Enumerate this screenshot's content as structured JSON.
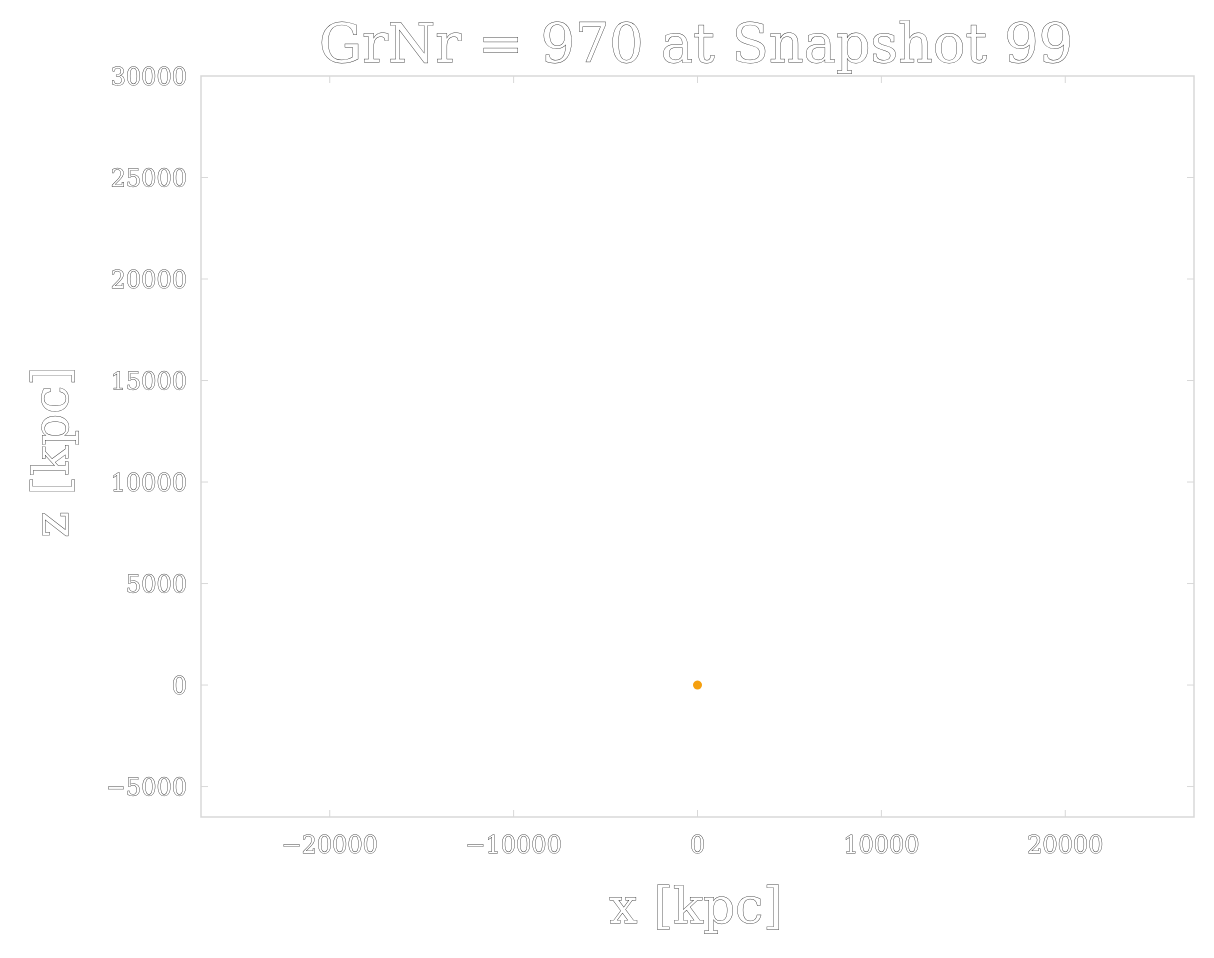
{
  "chart_data": {
    "type": "scatter",
    "title": "GrNr = 970 at Snapshot 99",
    "xlabel": "x [kpc]",
    "ylabel": "z [kpc]",
    "xlim": [
      -27000,
      27000
    ],
    "ylim": [
      -6500,
      30000
    ],
    "x_ticks": [
      -20000,
      -10000,
      0,
      10000,
      20000
    ],
    "x_tick_labels": [
      "−20000",
      "−10000",
      "0",
      "10000",
      "20000"
    ],
    "y_ticks": [
      -5000,
      0,
      5000,
      10000,
      15000,
      20000,
      25000,
      30000
    ],
    "y_tick_labels": [
      "−5000",
      "0",
      "5000",
      "10000",
      "15000",
      "20000",
      "25000",
      "30000"
    ],
    "series": [
      {
        "x": [
          0
        ],
        "y": [
          0
        ],
        "color": "#f5a00f"
      }
    ],
    "grid": false,
    "legend": "none"
  }
}
